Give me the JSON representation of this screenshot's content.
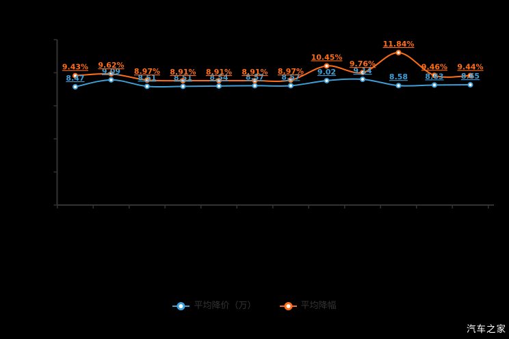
{
  "watermark": "汽车之家",
  "colors": {
    "blue_series": "#3f9fd6",
    "orange_series": "#ff6e17",
    "axis": "#333333",
    "legend_text": "#333333",
    "watermark_text": "#ffffff",
    "background": "#000000"
  },
  "chart_data": {
    "type": "line",
    "title": "",
    "xlabel": "",
    "ylabel": "",
    "x_axis": {
      "point_count": 12,
      "tick_labels_visible": false
    },
    "grid": false,
    "legend_position": "bottom",
    "series": [
      {
        "name": "平均降价（万）",
        "color": "#3f9fd6",
        "values": [
          8.47,
          9.09,
          8.51,
          8.51,
          8.54,
          8.57,
          8.57,
          9.02,
          9.14,
          8.58,
          8.63,
          8.65
        ],
        "labels": [
          "8.47",
          "9.09",
          "8.51",
          "8.51",
          "8.54",
          "8.57",
          "8.57",
          "9.02",
          "9.14",
          "8.58",
          "8.63",
          "8.65"
        ]
      },
      {
        "name": "平均降幅",
        "color": "#ff6e17",
        "values": [
          9.43,
          9.62,
          8.97,
          8.91,
          8.91,
          8.91,
          8.97,
          10.45,
          9.76,
          11.84,
          9.46,
          9.44
        ],
        "labels": [
          "9.43%",
          "9.62%",
          "8.97%",
          "8.91%",
          "8.91%",
          "8.91%",
          "8.97%",
          "10.45%",
          "9.76%",
          "11.84%",
          "9.46%",
          "9.44%"
        ]
      }
    ]
  }
}
